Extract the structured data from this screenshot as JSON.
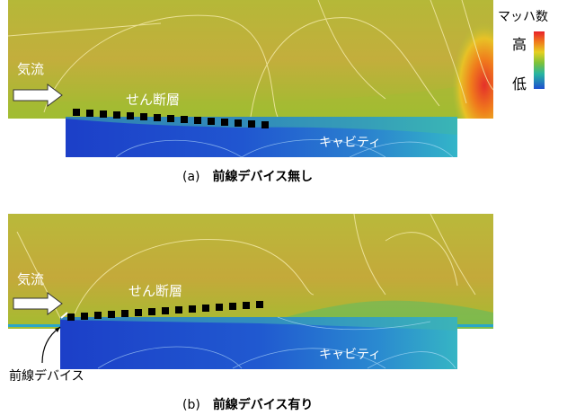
{
  "legend": {
    "title": "マッハ数",
    "high": "高",
    "low": "低",
    "colors": [
      "#e8202a",
      "#f07a1c",
      "#e6d020",
      "#7cc23a",
      "#27b5a2",
      "#1f4fd0"
    ]
  },
  "panel_a": {
    "letter": "(a)",
    "title": "前線デバイス無し",
    "flow_label": "気流",
    "shear_label": "せん断層",
    "cavity_label": "キャビティ"
  },
  "panel_b": {
    "letter": "(b)",
    "title": "前線デバイス有り",
    "flow_label": "気流",
    "shear_label": "せん断層",
    "cavity_label": "キャビティ",
    "device_label": "前線デバイス"
  },
  "colors": {
    "freestream": "#9fbc2e",
    "upper": "#c4a83a",
    "cavity_deep": "#1f4fd0",
    "cavity_mid": "#2a9bc4",
    "wall": "#ffffff",
    "shear_dash": "#000000"
  }
}
